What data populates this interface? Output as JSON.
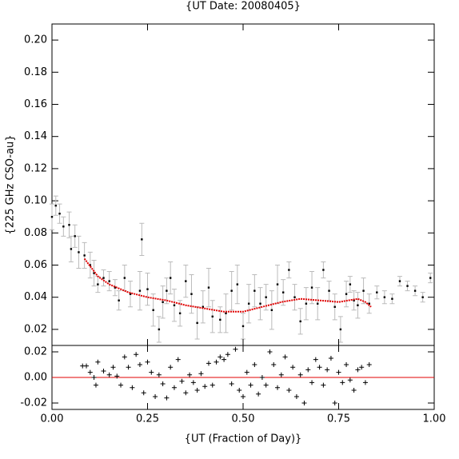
{
  "chart_data": [
    {
      "type": "errorscatter",
      "title": "{UT Date: 20080405}",
      "ylabel": "{225 GHz CSO-au}",
      "xlim": [
        0,
        1
      ],
      "ylim": [
        0.01,
        0.21
      ],
      "yticks": [
        {
          "value": 0.02,
          "label": "0.02"
        },
        {
          "value": 0.04,
          "label": "0.04"
        },
        {
          "value": 0.06,
          "label": "0.06"
        },
        {
          "value": 0.08,
          "label": "0.08"
        },
        {
          "value": 0.1,
          "label": "0.10"
        },
        {
          "value": 0.12,
          "label": "0.12"
        },
        {
          "value": 0.14,
          "label": "0.14"
        },
        {
          "value": 0.16,
          "label": "0.16"
        },
        {
          "value": 0.18,
          "label": "0.18"
        },
        {
          "value": 0.2,
          "label": "0.20"
        }
      ],
      "color": "#000000",
      "error_color": "#bbbbbb",
      "x": [
        0.0,
        0.01,
        0.02,
        0.03,
        0.045,
        0.05,
        0.06,
        0.07,
        0.085,
        0.1,
        0.11,
        0.12,
        0.135,
        0.15,
        0.165,
        0.175,
        0.19,
        0.205,
        0.23,
        0.235,
        0.25,
        0.265,
        0.28,
        0.29,
        0.3,
        0.31,
        0.32,
        0.335,
        0.35,
        0.365,
        0.38,
        0.395,
        0.41,
        0.42,
        0.44,
        0.455,
        0.47,
        0.485,
        0.5,
        0.515,
        0.53,
        0.545,
        0.56,
        0.575,
        0.59,
        0.605,
        0.62,
        0.635,
        0.65,
        0.665,
        0.68,
        0.695,
        0.71,
        0.725,
        0.74,
        0.755,
        0.77,
        0.78,
        0.79,
        0.8,
        0.815,
        0.83,
        0.85,
        0.87,
        0.89,
        0.91,
        0.93,
        0.95,
        0.97,
        0.99
      ],
      "values": [
        0.09,
        0.097,
        0.092,
        0.084,
        0.085,
        0.07,
        0.078,
        0.068,
        0.066,
        0.06,
        0.055,
        0.048,
        0.052,
        0.05,
        0.046,
        0.038,
        0.052,
        0.042,
        0.044,
        0.076,
        0.045,
        0.032,
        0.02,
        0.037,
        0.044,
        0.052,
        0.035,
        0.03,
        0.05,
        0.042,
        0.024,
        0.034,
        0.046,
        0.028,
        0.026,
        0.03,
        0.044,
        0.048,
        0.022,
        0.036,
        0.044,
        0.036,
        0.04,
        0.032,
        0.048,
        0.043,
        0.057,
        0.04,
        0.025,
        0.036,
        0.046,
        0.036,
        0.057,
        0.044,
        0.034,
        0.02,
        0.042,
        0.048,
        0.038,
        0.035,
        0.044,
        0.036,
        0.043,
        0.04,
        0.039,
        0.05,
        0.047,
        0.044,
        0.04,
        0.052
      ],
      "errors": [
        0.008,
        0.006,
        0.006,
        0.006,
        0.008,
        0.008,
        0.007,
        0.01,
        0.008,
        0.008,
        0.008,
        0.005,
        0.005,
        0.006,
        0.005,
        0.006,
        0.008,
        0.008,
        0.012,
        0.01,
        0.01,
        0.01,
        0.008,
        0.01,
        0.008,
        0.01,
        0.01,
        0.008,
        0.01,
        0.012,
        0.01,
        0.01,
        0.012,
        0.01,
        0.008,
        0.012,
        0.012,
        0.012,
        0.008,
        0.012,
        0.01,
        0.01,
        0.008,
        0.012,
        0.012,
        0.008,
        0.005,
        0.008,
        0.008,
        0.01,
        0.01,
        0.01,
        0.005,
        0.006,
        0.008,
        0.008,
        0.008,
        0.005,
        0.006,
        0.008,
        0.008,
        0.006,
        0.004,
        0.004,
        0.003,
        0.003,
        0.003,
        0.003,
        0.003,
        0.003
      ],
      "fit": {
        "color": "#e00000",
        "x": [
          0.085,
          0.12,
          0.15,
          0.2,
          0.25,
          0.3,
          0.35,
          0.4,
          0.45,
          0.5,
          0.55,
          0.6,
          0.65,
          0.7,
          0.75,
          0.8,
          0.82,
          0.835
        ],
        "values": [
          0.064,
          0.053,
          0.048,
          0.043,
          0.04,
          0.038,
          0.035,
          0.033,
          0.031,
          0.031,
          0.034,
          0.037,
          0.039,
          0.038,
          0.037,
          0.039,
          0.037,
          0.034
        ]
      }
    },
    {
      "type": "residual",
      "xlabel": "{UT (Fraction of Day)}",
      "xlim": [
        0,
        1
      ],
      "ylim": [
        -0.025,
        0.025
      ],
      "xticks": [
        {
          "value": 0,
          "label": "0.00"
        },
        {
          "value": 0.25,
          "label": "0.25"
        },
        {
          "value": 0.5,
          "label": "0.50"
        },
        {
          "value": 0.75,
          "label": "0.75"
        },
        {
          "value": 1,
          "label": "1.00"
        }
      ],
      "yticks": [
        {
          "value": -0.02,
          "label": "-0.02"
        },
        {
          "value": 0,
          "label": "0.00"
        },
        {
          "value": 0.02,
          "label": "0.02"
        }
      ],
      "color": "#000000",
      "hline": 0,
      "hline_color": "#e00000",
      "x": [
        0.08,
        0.09,
        0.1,
        0.11,
        0.115,
        0.12,
        0.135,
        0.15,
        0.16,
        0.17,
        0.18,
        0.19,
        0.2,
        0.21,
        0.22,
        0.23,
        0.24,
        0.25,
        0.26,
        0.27,
        0.28,
        0.29,
        0.3,
        0.31,
        0.32,
        0.33,
        0.34,
        0.35,
        0.36,
        0.37,
        0.38,
        0.39,
        0.4,
        0.41,
        0.42,
        0.43,
        0.44,
        0.45,
        0.46,
        0.47,
        0.48,
        0.49,
        0.5,
        0.51,
        0.52,
        0.53,
        0.54,
        0.55,
        0.56,
        0.57,
        0.58,
        0.59,
        0.6,
        0.61,
        0.62,
        0.63,
        0.64,
        0.65,
        0.66,
        0.67,
        0.68,
        0.69,
        0.7,
        0.71,
        0.72,
        0.73,
        0.74,
        0.75,
        0.76,
        0.77,
        0.78,
        0.79,
        0.8,
        0.81,
        0.82,
        0.83
      ],
      "values": [
        0.009,
        0.009,
        0.004,
        0.0,
        -0.006,
        0.012,
        0.005,
        0.002,
        0.008,
        0.001,
        -0.006,
        0.016,
        0.008,
        -0.008,
        0.018,
        0.01,
        -0.012,
        0.012,
        0.004,
        -0.015,
        0.002,
        -0.005,
        -0.016,
        0.008,
        -0.008,
        0.014,
        -0.003,
        -0.012,
        0.002,
        -0.004,
        -0.01,
        0.003,
        -0.007,
        0.011,
        -0.006,
        0.012,
        0.016,
        0.014,
        0.018,
        -0.005,
        0.022,
        -0.01,
        -0.015,
        0.004,
        -0.006,
        0.01,
        -0.013,
        0.0,
        -0.006,
        0.02,
        0.01,
        -0.008,
        0.002,
        0.016,
        -0.01,
        0.008,
        -0.015,
        0.002,
        -0.02,
        0.006,
        -0.004,
        0.014,
        0.008,
        -0.006,
        0.006,
        0.015,
        -0.02,
        0.004,
        -0.004,
        0.01,
        -0.002,
        -0.01,
        0.006,
        0.008,
        -0.004,
        0.01
      ]
    }
  ]
}
